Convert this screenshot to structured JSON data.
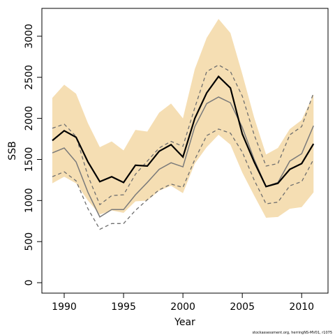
{
  "chart_data": {
    "type": "line",
    "x": [
      1989,
      1990,
      1991,
      1992,
      1993,
      1994,
      1995,
      1996,
      1997,
      1998,
      1999,
      2000,
      2001,
      2002,
      2003,
      2004,
      2005,
      2006,
      2007,
      2008,
      2009,
      2010,
      2011
    ],
    "xlabel": "Year",
    "ylabel": "SSB",
    "xlim": [
      1988.12,
      2012.22
    ],
    "ylim": [
      -127,
      3339
    ],
    "xticks": [
      1990,
      1995,
      2000,
      2005,
      2010
    ],
    "yticks": [
      0,
      500,
      1000,
      1500,
      2000,
      2500,
      3000
    ],
    "band": {
      "color": "#f5deb3",
      "upper": [
        2250,
        2410,
        2300,
        1940,
        1650,
        1720,
        1610,
        1860,
        1840,
        2070,
        2180,
        2000,
        2600,
        2980,
        3210,
        3040,
        2540,
        2010,
        1560,
        1640,
        1870,
        1980,
        2290
      ],
      "lower": [
        1210,
        1290,
        1210,
        1000,
        830,
        880,
        850,
        990,
        1000,
        1120,
        1180,
        1090,
        1450,
        1650,
        1800,
        1680,
        1340,
        1060,
        790,
        800,
        900,
        920,
        1100
      ]
    },
    "series": [
      {
        "color": "#6e6e6e",
        "dashed": true,
        "width": 1.3,
        "values": [
          1880,
          1930,
          1780,
          1300,
          950,
          1060,
          1070,
          1320,
          1480,
          1640,
          1720,
          1660,
          2130,
          2570,
          2650,
          2570,
          2270,
          1800,
          1420,
          1450,
          1800,
          1900,
          2310
        ]
      },
      {
        "color": "#6e6e6e",
        "dashed": true,
        "width": 1.3,
        "values": [
          1290,
          1350,
          1240,
          900,
          650,
          720,
          720,
          880,
          1010,
          1130,
          1200,
          1160,
          1500,
          1790,
          1870,
          1820,
          1590,
          1250,
          960,
          980,
          1180,
          1230,
          1500
        ]
      },
      {
        "color": "#7a7a7a",
        "dashed": false,
        "width": 1.5,
        "values": [
          1580,
          1640,
          1470,
          1100,
          800,
          890,
          890,
          1070,
          1220,
          1380,
          1460,
          1410,
          1900,
          2180,
          2260,
          2190,
          1890,
          1500,
          1170,
          1220,
          1480,
          1570,
          1910
        ]
      },
      {
        "color": "#000000",
        "dashed": false,
        "width": 2.2,
        "values": [
          1730,
          1850,
          1770,
          1470,
          1230,
          1290,
          1220,
          1430,
          1420,
          1600,
          1680,
          1530,
          2000,
          2310,
          2510,
          2370,
          1810,
          1470,
          1170,
          1210,
          1380,
          1450,
          1690
        ]
      }
    ],
    "footnote": "stockassessment.org, herringNS-MV01, r1075"
  }
}
